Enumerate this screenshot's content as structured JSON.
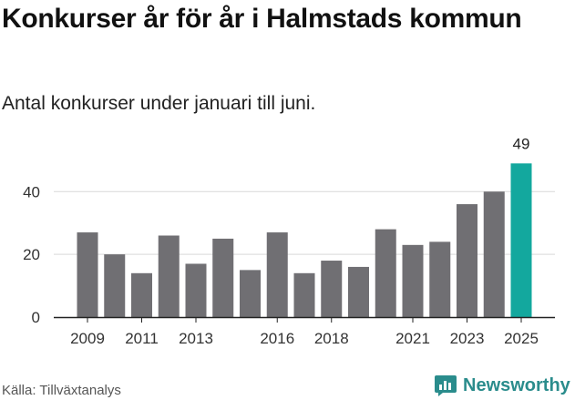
{
  "title": "Konkurser år för år i Halmstads kommun",
  "subtitle": "Antal konkurser under januari till juni.",
  "source": "Källa: Tillväxtanalys",
  "brand": "Newsworthy",
  "colors": {
    "bar": "#706f73",
    "highlight": "#13a89e",
    "grid": "#d9d9d9",
    "brand": "#2a8c8c"
  },
  "chart_data": {
    "type": "bar",
    "title": "Konkurser år för år i Halmstads kommun",
    "subtitle": "Antal konkurser under januari till juni.",
    "xlabel": "",
    "ylabel": "",
    "ylim": [
      0,
      52
    ],
    "yticks": [
      0,
      20,
      40
    ],
    "categories": [
      "2009",
      "2010",
      "2011",
      "2012",
      "2013",
      "2014",
      "2015",
      "2016",
      "2017",
      "2018",
      "2019",
      "2020",
      "2021",
      "2022",
      "2023",
      "2024",
      "2025"
    ],
    "values": [
      27,
      20,
      14,
      26,
      17,
      25,
      15,
      27,
      14,
      18,
      16,
      28,
      23,
      24,
      36,
      40,
      49
    ],
    "xtick_labels": [
      "2009",
      "2011",
      "2013",
      "2016",
      "2018",
      "2021",
      "2023",
      "2025"
    ],
    "highlight_category": "2025",
    "data_labels": [
      {
        "category": "2025",
        "text": "49"
      }
    ],
    "grid": true,
    "legend": "none"
  }
}
